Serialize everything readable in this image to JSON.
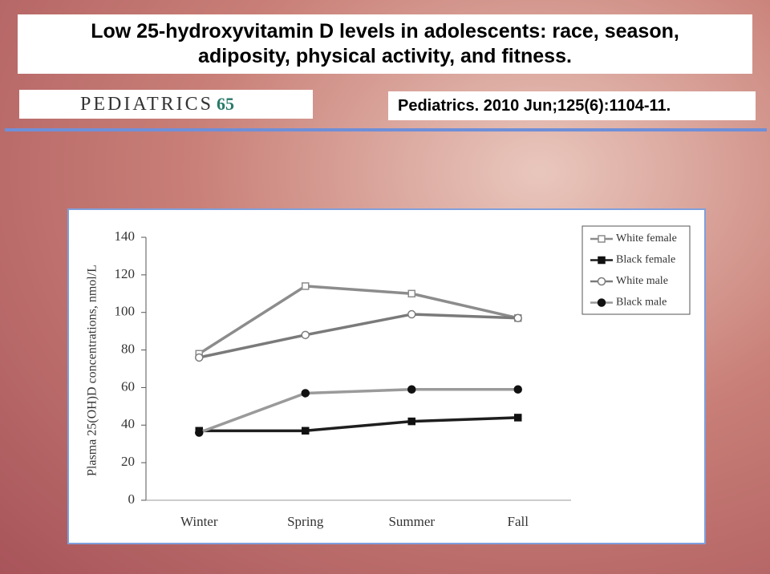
{
  "slide": {
    "title": "Low 25-hydroxyvitamin D levels in adolescents: race, season, adiposity, physical activity, and fitness.",
    "logo": {
      "name": "PEDIATRICS",
      "mark": "65"
    },
    "citation": "Pediatrics. 2010 Jun;125(6):1104-11."
  },
  "chart_data": {
    "type": "line",
    "y_label": "Plasma 25(OH)D concentrations, nmol/L",
    "categories": [
      "Winter",
      "Spring",
      "Summer",
      "Fall"
    ],
    "series": [
      {
        "name": "White female",
        "color": "#8c8c8c",
        "marker": "square-open",
        "values": [
          78,
          114,
          110,
          97
        ]
      },
      {
        "name": "Black female",
        "color": "#1e1e1e",
        "marker": "square-filled",
        "values": [
          37,
          37,
          42,
          44
        ]
      },
      {
        "name": "White male",
        "color": "#7a7a7a",
        "marker": "circle-open",
        "values": [
          76,
          88,
          99,
          97
        ]
      },
      {
        "name": "Black male",
        "color": "#9a9a9a",
        "marker": "circle-filled",
        "values": [
          36,
          57,
          59,
          59
        ]
      }
    ],
    "ylim": [
      0,
      140
    ],
    "yticks": [
      0,
      20,
      40,
      60,
      80,
      100,
      120,
      140
    ],
    "legend": "top-right"
  }
}
